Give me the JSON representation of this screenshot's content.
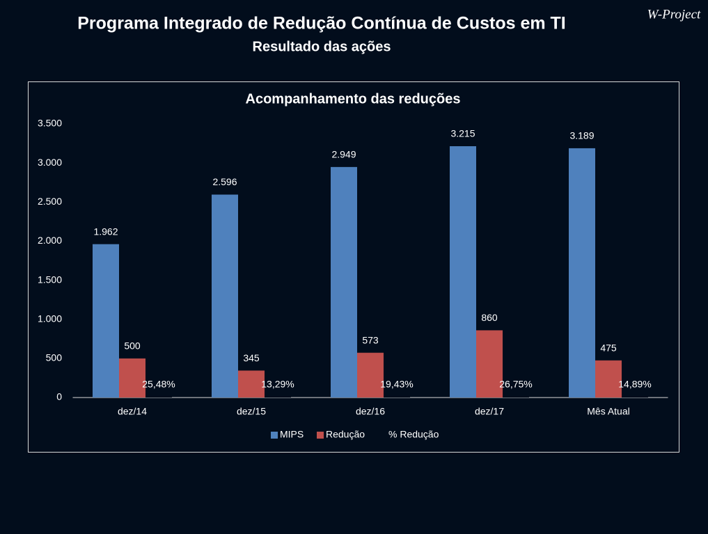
{
  "header": {
    "title": "Programa Integrado de Redução Contínua de Custos em TI",
    "subtitle": "Resultado das ações",
    "logo": "W-Project"
  },
  "chart_data": {
    "type": "bar",
    "title": "Acompanhamento das reduções",
    "categories": [
      "dez/14",
      "dez/15",
      "dez/16",
      "dez/17",
      "Mês Atual"
    ],
    "series": [
      {
        "name": "MIPS",
        "color": "#4f81bd",
        "values": [
          1962,
          2596,
          2949,
          3215,
          3189
        ],
        "value_labels": [
          "1.962",
          "2.596",
          "2.949",
          "3.215",
          "3.189"
        ]
      },
      {
        "name": "Redução",
        "color": "#c0504d",
        "values": [
          500,
          345,
          573,
          860,
          475
        ]
      },
      {
        "name": "% Redução",
        "color": "#020d1c",
        "values": [
          25.48,
          13.29,
          19.43,
          26.75,
          14.89
        ],
        "value_labels": [
          "25,48%",
          "13,29%",
          "19,43%",
          "26,75%",
          "14,89%"
        ]
      }
    ],
    "ylim": [
      0,
      3500
    ],
    "yticks": [
      0,
      500,
      {
        "value": 1000,
        "label": "1.000"
      },
      {
        "value": 1500,
        "label": "1.500"
      },
      {
        "value": 2000,
        "label": "2.000"
      },
      {
        "value": 2500,
        "label": "2.500"
      },
      {
        "value": 3000,
        "label": "3.000"
      },
      {
        "value": 3500,
        "label": "3.500"
      }
    ],
    "legend": "bottom",
    "grid": false
  }
}
